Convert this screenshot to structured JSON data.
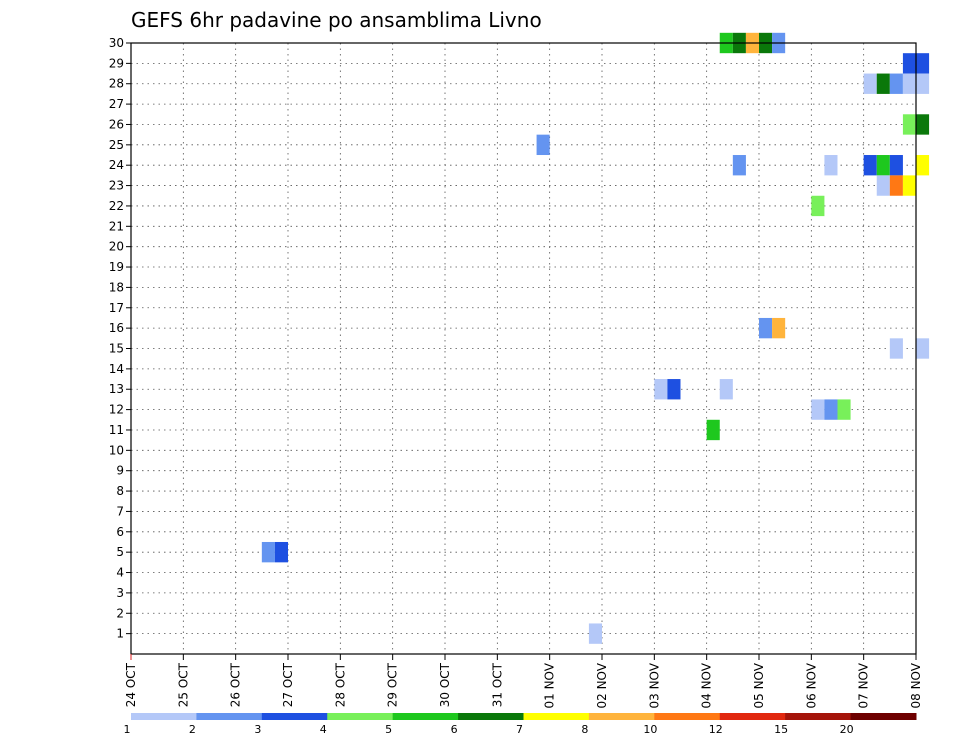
{
  "chart_data": {
    "type": "heatmap",
    "title": "GEFS 6hr padavine po ansamblima Livno",
    "xlabel": "",
    "ylabel": "",
    "x_ticks": [
      "24 OCT",
      "25 OCT",
      "26 OCT",
      "27 OCT",
      "28 OCT",
      "29 OCT",
      "30 OCT",
      "31 OCT",
      "01 NOV",
      "02 NOV",
      "03 NOV",
      "04 NOV",
      "05 NOV",
      "06 NOV",
      "07 NOV",
      "08 NOV"
    ],
    "y_ticks": [
      1,
      2,
      3,
      4,
      5,
      6,
      7,
      8,
      9,
      10,
      11,
      12,
      13,
      14,
      15,
      16,
      17,
      18,
      19,
      20,
      21,
      22,
      23,
      24,
      25,
      26,
      27,
      28,
      29,
      30
    ],
    "ylim": [
      0,
      30
    ],
    "grid": true,
    "colorbar": {
      "labels": [
        "1",
        "2",
        "3",
        "4",
        "5",
        "6",
        "7",
        "8",
        "10",
        "12",
        "15",
        "20"
      ],
      "colors": [
        "#b4c8f8",
        "#6494f0",
        "#1e50e1",
        "#78f05a",
        "#1ec81e",
        "#0a780a",
        "#ffff00",
        "#ffb43c",
        "#ff7814",
        "#e1280f",
        "#a5140a",
        "#6e0000"
      ]
    },
    "cells": [
      {
        "date": "2018-10-26T12:00",
        "member": 5,
        "bin": 1
      },
      {
        "date": "2018-10-26T18:00",
        "member": 5,
        "bin": 2
      },
      {
        "date": "2018-10-31T18:00",
        "member": 25,
        "bin": 1
      },
      {
        "date": "2018-11-01T18:00",
        "member": 1,
        "bin": 0
      },
      {
        "date": "2018-11-03T00:00",
        "member": 13,
        "bin": 0
      },
      {
        "date": "2018-11-03T06:00",
        "member": 13,
        "bin": 2
      },
      {
        "date": "2018-11-04T00:00",
        "member": 11,
        "bin": 4
      },
      {
        "date": "2018-11-04T06:00",
        "member": 13,
        "bin": 0
      },
      {
        "date": "2018-11-04T06:00",
        "member": 30,
        "bin": 4
      },
      {
        "date": "2018-11-04T12:00",
        "member": 30,
        "bin": 5
      },
      {
        "date": "2018-11-04T12:00",
        "member": 24,
        "bin": 1
      },
      {
        "date": "2018-11-04T18:00",
        "member": 30,
        "bin": 7
      },
      {
        "date": "2018-11-05T00:00",
        "member": 30,
        "bin": 5
      },
      {
        "date": "2018-11-05T00:00",
        "member": 16,
        "bin": 1
      },
      {
        "date": "2018-11-05T06:00",
        "member": 30,
        "bin": 1
      },
      {
        "date": "2018-11-05T06:00",
        "member": 16,
        "bin": 7
      },
      {
        "date": "2018-11-06T00:00",
        "member": 22,
        "bin": 3
      },
      {
        "date": "2018-11-06T00:00",
        "member": 12,
        "bin": 0
      },
      {
        "date": "2018-11-06T06:00",
        "member": 12,
        "bin": 1
      },
      {
        "date": "2018-11-06T06:00",
        "member": 24,
        "bin": 0
      },
      {
        "date": "2018-11-06T12:00",
        "member": 12,
        "bin": 3
      },
      {
        "date": "2018-11-07T00:00",
        "member": 28,
        "bin": 0
      },
      {
        "date": "2018-11-07T00:00",
        "member": 24,
        "bin": 2
      },
      {
        "date": "2018-11-07T06:00",
        "member": 28,
        "bin": 5
      },
      {
        "date": "2018-11-07T06:00",
        "member": 24,
        "bin": 4
      },
      {
        "date": "2018-11-07T06:00",
        "member": 23,
        "bin": 0
      },
      {
        "date": "2018-11-07T12:00",
        "member": 28,
        "bin": 1
      },
      {
        "date": "2018-11-07T12:00",
        "member": 24,
        "bin": 2
      },
      {
        "date": "2018-11-07T12:00",
        "member": 23,
        "bin": 8
      },
      {
        "date": "2018-11-07T12:00",
        "member": 15,
        "bin": 0
      },
      {
        "date": "2018-11-07T18:00",
        "member": 29,
        "bin": 2
      },
      {
        "date": "2018-11-07T18:00",
        "member": 28,
        "bin": 0
      },
      {
        "date": "2018-11-07T18:00",
        "member": 26,
        "bin": 3
      },
      {
        "date": "2018-11-07T18:00",
        "member": 23,
        "bin": 6
      },
      {
        "date": "2018-11-08T00:00",
        "member": 29,
        "bin": 2
      },
      {
        "date": "2018-11-08T00:00",
        "member": 28,
        "bin": 0
      },
      {
        "date": "2018-11-08T00:00",
        "member": 26,
        "bin": 5
      },
      {
        "date": "2018-11-08T00:00",
        "member": 24,
        "bin": 6
      },
      {
        "date": "2018-11-08T00:00",
        "member": 15,
        "bin": 0
      }
    ]
  }
}
